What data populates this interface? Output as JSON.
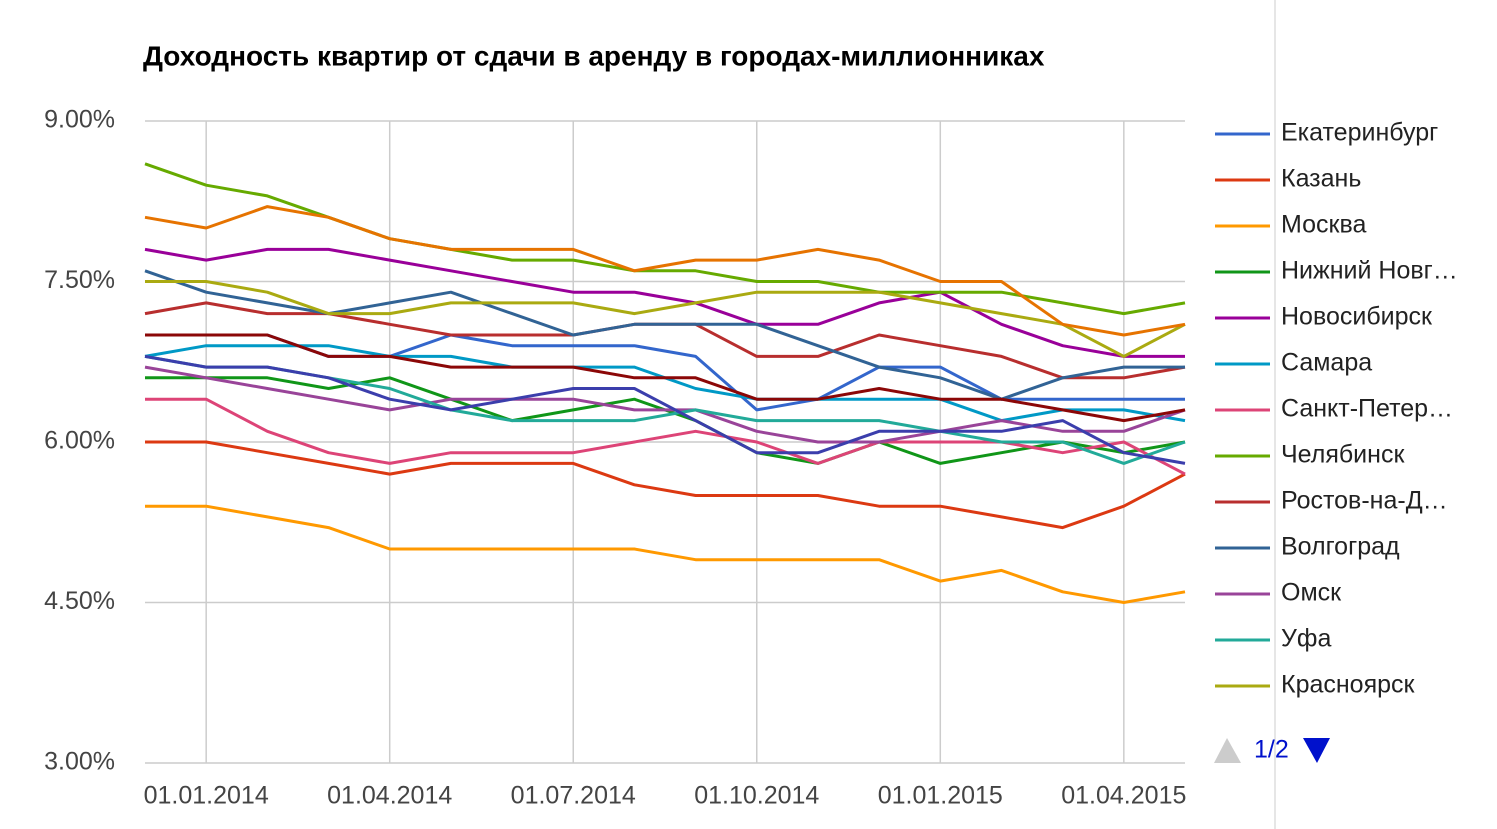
{
  "chart_data": {
    "type": "line",
    "title": "Доходность квартир от сдачи в аренду в городах-миллионниках",
    "categories": [
      null,
      "01.01.2014",
      null,
      null,
      "01.04.2014",
      null,
      null,
      "01.07.2014",
      null,
      null,
      "01.10.2014",
      null,
      null,
      "01.01.2015",
      null,
      null,
      "01.04.2015",
      null
    ],
    "ylim": [
      3,
      9
    ],
    "yticks": [
      {
        "value": 3,
        "label": "3.00%"
      },
      {
        "value": 4.5,
        "label": "4.50%"
      },
      {
        "value": 6,
        "label": "6.00%"
      },
      {
        "value": 7.5,
        "label": "7.50%"
      },
      {
        "value": 9,
        "label": "9.00%"
      }
    ],
    "grid": true,
    "legend": "right",
    "legend_page": "1/2",
    "series": [
      {
        "name": "Екатеринбург",
        "color": "#3366cc",
        "values": [
          7.0,
          7.0,
          7.0,
          6.8,
          6.8,
          7.0,
          6.9,
          6.9,
          6.9,
          6.8,
          6.3,
          6.4,
          6.7,
          6.7,
          6.4,
          6.4,
          6.4,
          6.4
        ]
      },
      {
        "name": "Казань",
        "color": "#dc3912",
        "values": [
          6.0,
          6.0,
          5.9,
          5.8,
          5.7,
          5.8,
          5.8,
          5.8,
          5.6,
          5.5,
          5.5,
          5.5,
          5.4,
          5.4,
          5.3,
          5.2,
          5.4,
          5.7
        ]
      },
      {
        "name": "Москва",
        "color": "#ff9900",
        "values": [
          5.4,
          5.4,
          5.3,
          5.2,
          5.0,
          5.0,
          5.0,
          5.0,
          5.0,
          4.9,
          4.9,
          4.9,
          4.9,
          4.7,
          4.8,
          4.6,
          4.5,
          4.6
        ]
      },
      {
        "name": "Нижний Новг…",
        "color": "#109618",
        "values": [
          6.6,
          6.6,
          6.6,
          6.5,
          6.6,
          6.4,
          6.2,
          6.3,
          6.4,
          6.2,
          5.9,
          5.8,
          6.0,
          5.8,
          5.9,
          6.0,
          5.9,
          6.0
        ]
      },
      {
        "name": "Новосибирск",
        "color": "#990099",
        "values": [
          7.8,
          7.7,
          7.8,
          7.8,
          7.7,
          7.6,
          7.5,
          7.4,
          7.4,
          7.3,
          7.1,
          7.1,
          7.3,
          7.4,
          7.1,
          6.9,
          6.8,
          6.8
        ]
      },
      {
        "name": "Самара",
        "color": "#0099c6",
        "values": [
          6.8,
          6.9,
          6.9,
          6.9,
          6.8,
          6.8,
          6.7,
          6.7,
          6.7,
          6.5,
          6.4,
          6.4,
          6.4,
          6.4,
          6.2,
          6.3,
          6.3,
          6.2
        ]
      },
      {
        "name": "Санкт-Петер…",
        "color": "#dd4477",
        "values": [
          6.4,
          6.4,
          6.1,
          5.9,
          5.8,
          5.9,
          5.9,
          5.9,
          6.0,
          6.1,
          6.0,
          5.8,
          6.0,
          6.0,
          6.0,
          5.9,
          6.0,
          5.7
        ]
      },
      {
        "name": "Челябинск",
        "color": "#66aa00",
        "values": [
          8.6,
          8.4,
          8.3,
          8.1,
          7.9,
          7.8,
          7.7,
          7.7,
          7.6,
          7.6,
          7.5,
          7.5,
          7.4,
          7.4,
          7.4,
          7.3,
          7.2,
          7.3
        ]
      },
      {
        "name": "Ростов-на-Д…",
        "color": "#b82e2e",
        "values": [
          7.2,
          7.3,
          7.2,
          7.2,
          7.1,
          7.0,
          7.0,
          7.0,
          7.1,
          7.1,
          6.8,
          6.8,
          7.0,
          6.9,
          6.8,
          6.6,
          6.6,
          6.7
        ]
      },
      {
        "name": "Волгоград",
        "color": "#316395",
        "values": [
          7.6,
          7.4,
          7.3,
          7.2,
          7.3,
          7.4,
          7.2,
          7.0,
          7.1,
          7.1,
          7.1,
          6.9,
          6.7,
          6.6,
          6.4,
          6.6,
          6.7,
          6.7
        ]
      },
      {
        "name": "Омск",
        "color": "#994499",
        "values": [
          6.7,
          6.6,
          6.5,
          6.4,
          6.3,
          6.4,
          6.4,
          6.4,
          6.3,
          6.3,
          6.1,
          6.0,
          6.0,
          6.1,
          6.2,
          6.1,
          6.1,
          6.3
        ]
      },
      {
        "name": "Уфа",
        "color": "#22aa99",
        "values": [
          6.8,
          6.7,
          6.7,
          6.6,
          6.5,
          6.3,
          6.2,
          6.2,
          6.2,
          6.3,
          6.2,
          6.2,
          6.2,
          6.1,
          6.0,
          6.0,
          5.8,
          6.0
        ]
      },
      {
        "name": "Красноярск",
        "color": "#aaaa11",
        "values": [
          7.5,
          7.5,
          7.4,
          7.2,
          7.2,
          7.3,
          7.3,
          7.3,
          7.2,
          7.3,
          7.4,
          7.4,
          7.4,
          7.3,
          7.2,
          7.1,
          6.8,
          7.1
        ]
      },
      {
        "color": "#e67300",
        "values": [
          8.1,
          8.0,
          8.2,
          8.1,
          7.9,
          7.8,
          7.8,
          7.8,
          7.6,
          7.7,
          7.7,
          7.8,
          7.7,
          7.5,
          7.5,
          7.1,
          7.0,
          7.1
        ]
      },
      {
        "color": "#8b0707",
        "values": [
          7.0,
          7.0,
          7.0,
          6.8,
          6.8,
          6.7,
          6.7,
          6.7,
          6.6,
          6.6,
          6.4,
          6.4,
          6.5,
          6.4,
          6.4,
          6.3,
          6.2,
          6.3
        ]
      },
      {
        "color": "#3b3eac",
        "values": [
          6.8,
          6.7,
          6.7,
          6.6,
          6.4,
          6.3,
          6.4,
          6.5,
          6.5,
          6.2,
          5.9,
          5.9,
          6.1,
          6.1,
          6.1,
          6.2,
          5.9,
          5.8
        ]
      }
    ]
  }
}
